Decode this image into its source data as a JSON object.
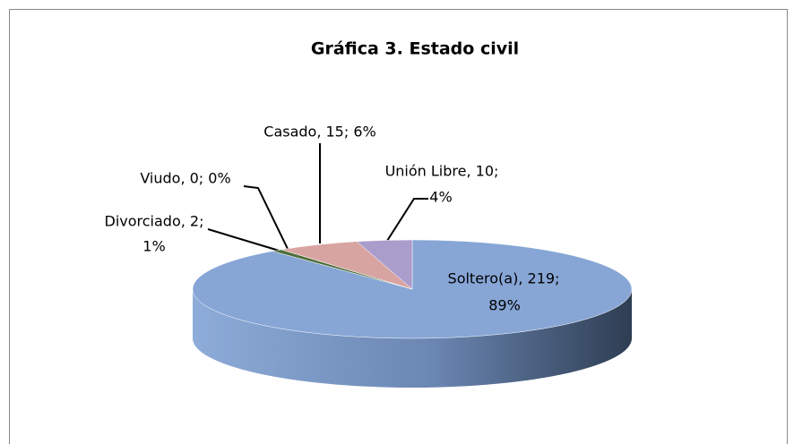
{
  "chart_data": {
    "type": "pie3d",
    "title": "Gráfica 3. Estado civil",
    "categories": [
      "Soltero(a)",
      "Divorciado",
      "Viudo",
      "Casado",
      "Unión Libre"
    ],
    "values": [
      219,
      2,
      0,
      15,
      10
    ],
    "value_labels": [
      [
        "Soltero(a), 219;",
        "89%"
      ],
      [
        "Divorciado, 2;",
        "1%"
      ],
      [
        "Viudo, 0; 0%"
      ],
      [
        "Casado, 15; 6%"
      ],
      [
        "Unión Libre, 10;",
        "4%"
      ]
    ],
    "colors": [
      "#87a6d6",
      "#4f6f3a",
      "#6a5a8a",
      "#d8a4a2",
      "#aa9ccb"
    ]
  }
}
